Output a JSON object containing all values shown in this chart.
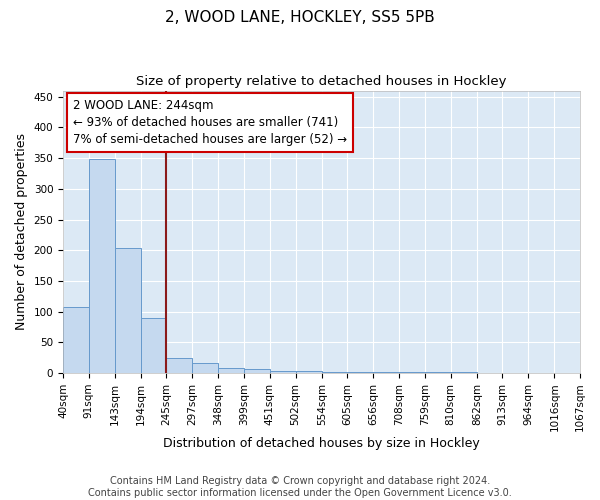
{
  "title1": "2, WOOD LANE, HOCKLEY, SS5 5PB",
  "title2": "Size of property relative to detached houses in Hockley",
  "xlabel": "Distribution of detached houses by size in Hockley",
  "ylabel": "Number of detached properties",
  "bar_heights": [
    108,
    348,
    203,
    90,
    25,
    16,
    8,
    7,
    4,
    3,
    2,
    2,
    2,
    1,
    1,
    1,
    0,
    0,
    0,
    0
  ],
  "bin_edges": [
    40,
    91,
    143,
    194,
    245,
    297,
    348,
    399,
    451,
    502,
    554,
    605,
    656,
    708,
    759,
    810,
    862,
    913,
    964,
    1016,
    1067
  ],
  "bar_color": "#c5d9ef",
  "bar_edge_color": "#6699cc",
  "background_color": "#dce9f5",
  "vline_x": 244,
  "vline_color": "#8b1a1a",
  "annotation_line1": "2 WOOD LANE: 244sqm",
  "annotation_line2": "← 93% of detached houses are smaller (741)",
  "annotation_line3": "7% of semi-detached houses are larger (52) →",
  "annotation_box_color": "white",
  "annotation_box_edge_color": "#cc0000",
  "ylim": [
    0,
    460
  ],
  "yticks": [
    0,
    50,
    100,
    150,
    200,
    250,
    300,
    350,
    400,
    450
  ],
  "footer_text": "Contains HM Land Registry data © Crown copyright and database right 2024.\nContains public sector information licensed under the Open Government Licence v3.0.",
  "title1_fontsize": 11,
  "title2_fontsize": 9.5,
  "xlabel_fontsize": 9,
  "ylabel_fontsize": 9,
  "tick_fontsize": 7.5,
  "annotation_fontsize": 8.5,
  "footer_fontsize": 7
}
